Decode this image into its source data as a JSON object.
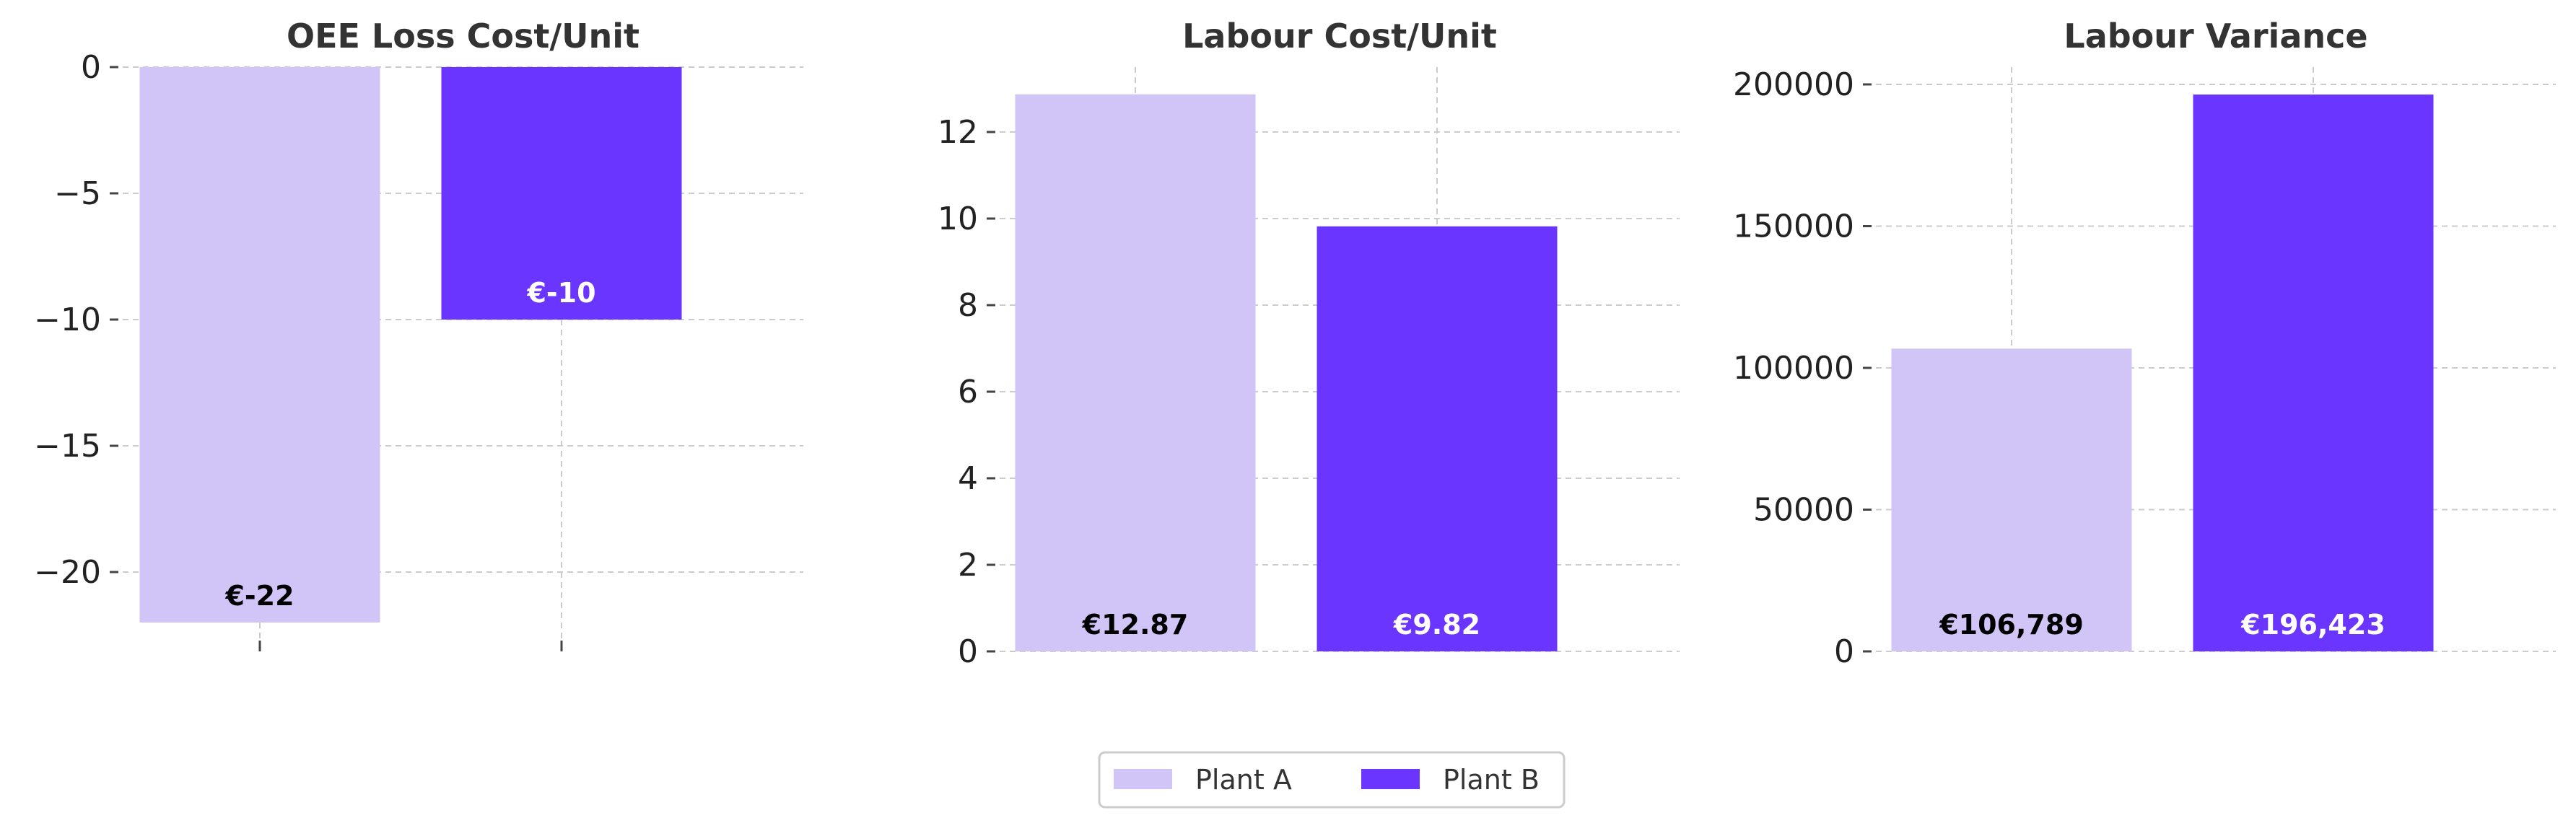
{
  "colors": {
    "plant_a": "#d1c4f7",
    "plant_b": "#6a35ff",
    "label_dark": "#000000",
    "label_light": "#ffffff"
  },
  "legend": {
    "position": "bottom-center",
    "items": [
      "Plant A",
      "Plant B"
    ]
  },
  "chart_data": [
    {
      "type": "bar",
      "title": "OEE Loss Cost/Unit",
      "categories": [
        "Plant A",
        "Plant B"
      ],
      "values": [
        -22,
        -10
      ],
      "data_labels": [
        "€-22",
        "€-10"
      ],
      "ylim": [
        -23,
        0
      ],
      "yticks": [
        0,
        -5,
        -10,
        -15,
        -20
      ],
      "ytick_labels": [
        "0",
        "−5",
        "−10",
        "−15",
        "−20"
      ],
      "grid": true
    },
    {
      "type": "bar",
      "title": "Labour Cost/Unit",
      "categories": [
        "Plant A",
        "Plant B"
      ],
      "values": [
        12.87,
        9.82
      ],
      "data_labels": [
        "€12.87",
        "€9.82"
      ],
      "ylim": [
        0,
        13.5
      ],
      "yticks": [
        0,
        2,
        4,
        6,
        8,
        10,
        12
      ],
      "ytick_labels": [
        "0",
        "2",
        "4",
        "6",
        "8",
        "10",
        "12"
      ],
      "grid": true
    },
    {
      "type": "bar",
      "title": "Labour Variance",
      "categories": [
        "Plant A",
        "Plant B"
      ],
      "values": [
        106789,
        196423
      ],
      "data_labels": [
        "€106,789",
        "€196,423"
      ],
      "ylim": [
        0,
        206000
      ],
      "yticks": [
        0,
        50000,
        100000,
        150000,
        200000
      ],
      "ytick_labels": [
        "0",
        "50000",
        "100000",
        "150000",
        "200000"
      ],
      "grid": true
    }
  ]
}
